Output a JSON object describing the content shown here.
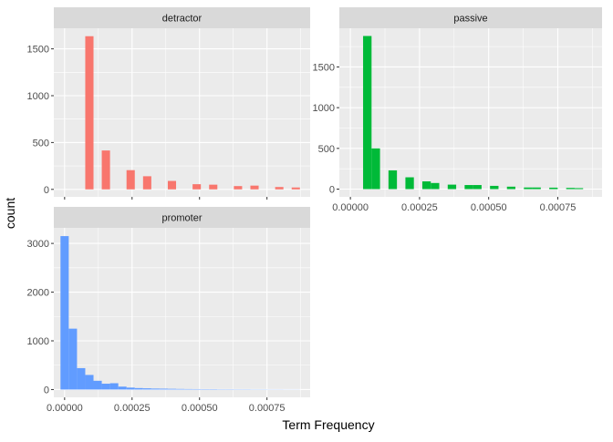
{
  "chart_data": {
    "type": "bar",
    "xlabel": "Term Frequency",
    "ylabel": "count",
    "facet_layout": "wrap 2 columns, free scales",
    "grid": true,
    "legend": "none",
    "panels": [
      {
        "name": "detractor",
        "color": "#F8766D",
        "xlim": [
          -4e-05,
          0.00091
        ],
        "ylim": [
          -80,
          1720
        ],
        "x_ticks": [],
        "x_tick_labels": [],
        "y_ticks": [
          0,
          500,
          1000,
          1500
        ],
        "y_tick_labels": [
          "0",
          "500",
          "1000",
          "1500"
        ],
        "bin_width": 3.06e-05,
        "bins": [
          {
            "x": 9.18e-05,
            "count": 1635
          },
          {
            "x": 0.000153,
            "count": 415
          },
          {
            "x": 0.0002448,
            "count": 205
          },
          {
            "x": 0.000306,
            "count": 140
          },
          {
            "x": 0.0003978,
            "count": 90
          },
          {
            "x": 0.0004896,
            "count": 55
          },
          {
            "x": 0.0005508,
            "count": 50
          },
          {
            "x": 0.0006426,
            "count": 35
          },
          {
            "x": 0.0007038,
            "count": 40
          },
          {
            "x": 0.0007956,
            "count": 25
          },
          {
            "x": 0.0008568,
            "count": 20
          }
        ]
      },
      {
        "name": "passive",
        "color": "#00BA38",
        "xlim": [
          -4e-05,
          0.00091
        ],
        "ylim": [
          -95,
          1975
        ],
        "x_ticks": [
          0,
          0.00025,
          0.0005,
          0.00075
        ],
        "x_tick_labels": [
          "0.00000",
          "0.00025",
          "0.00050",
          "0.00075"
        ],
        "y_ticks": [
          0,
          500,
          1000,
          1500
        ],
        "y_tick_labels": [
          "0",
          "500",
          "1000",
          "1500"
        ],
        "bin_width": 3.06e-05,
        "bins": [
          {
            "x": 6.12e-05,
            "count": 1880
          },
          {
            "x": 9.18e-05,
            "count": 500
          },
          {
            "x": 0.000153,
            "count": 230
          },
          {
            "x": 0.0002142,
            "count": 145
          },
          {
            "x": 0.0002754,
            "count": 95
          },
          {
            "x": 0.000306,
            "count": 75
          },
          {
            "x": 0.0003672,
            "count": 55
          },
          {
            "x": 0.0004284,
            "count": 50
          },
          {
            "x": 0.000459,
            "count": 50
          },
          {
            "x": 0.0005202,
            "count": 40
          },
          {
            "x": 0.0005814,
            "count": 30
          },
          {
            "x": 0.0006426,
            "count": 20
          },
          {
            "x": 0.0006732,
            "count": 20
          },
          {
            "x": 0.0007344,
            "count": 18
          },
          {
            "x": 0.0007956,
            "count": 15
          },
          {
            "x": 0.0008262,
            "count": 12
          }
        ]
      },
      {
        "name": "promoter",
        "color": "#619CFF",
        "xlim": [
          -4e-05,
          0.00091
        ],
        "ylim": [
          -160,
          3320
        ],
        "x_ticks": [
          0,
          0.00025,
          0.0005,
          0.00075
        ],
        "x_tick_labels": [
          "0.00000",
          "0.00025",
          "0.00050",
          "0.00075"
        ],
        "y_ticks": [
          0,
          1000,
          2000,
          3000
        ],
        "y_tick_labels": [
          "0",
          "1000",
          "2000",
          "3000"
        ],
        "bin_width": 3.06e-05,
        "bins": [
          {
            "x": 0.0,
            "count": 3150
          },
          {
            "x": 3.06e-05,
            "count": 1250
          },
          {
            "x": 6.12e-05,
            "count": 440
          },
          {
            "x": 9.18e-05,
            "count": 300
          },
          {
            "x": 0.0001224,
            "count": 180
          },
          {
            "x": 0.000153,
            "count": 120
          },
          {
            "x": 0.0001836,
            "count": 130
          },
          {
            "x": 0.0002142,
            "count": 60
          },
          {
            "x": 0.0002448,
            "count": 40
          },
          {
            "x": 0.0002754,
            "count": 30
          },
          {
            "x": 0.000306,
            "count": 25
          },
          {
            "x": 0.0003366,
            "count": 20
          },
          {
            "x": 0.0003672,
            "count": 18
          },
          {
            "x": 0.0003978,
            "count": 15
          },
          {
            "x": 0.0004284,
            "count": 12
          },
          {
            "x": 0.000459,
            "count": 10
          },
          {
            "x": 0.0004896,
            "count": 9
          },
          {
            "x": 0.0005202,
            "count": 8
          },
          {
            "x": 0.0005508,
            "count": 8
          },
          {
            "x": 0.0005814,
            "count": 6
          },
          {
            "x": 0.000612,
            "count": 6
          },
          {
            "x": 0.0006426,
            "count": 5
          },
          {
            "x": 0.0006732,
            "count": 5
          },
          {
            "x": 0.0007038,
            "count": 4
          },
          {
            "x": 0.0007344,
            "count": 4
          },
          {
            "x": 0.000765,
            "count": 3
          },
          {
            "x": 0.0007956,
            "count": 3
          },
          {
            "x": 0.0008262,
            "count": 2
          },
          {
            "x": 0.0008568,
            "count": 2
          }
        ]
      }
    ]
  }
}
